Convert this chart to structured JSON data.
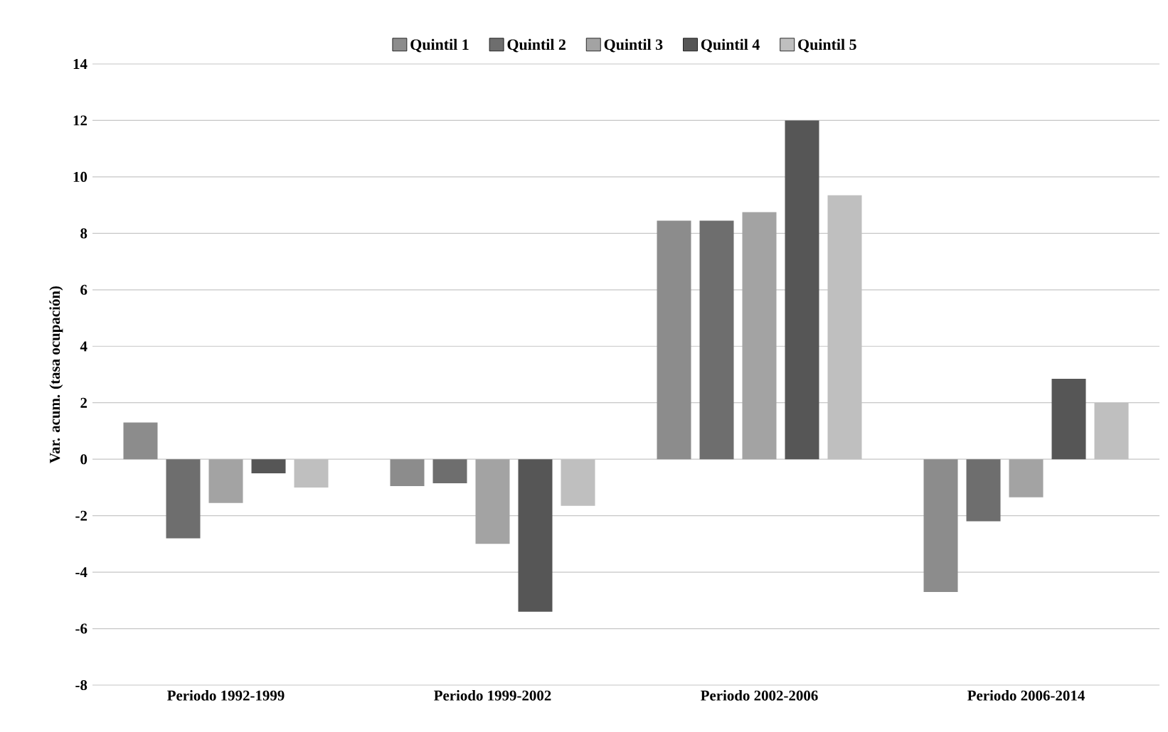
{
  "chart_data": {
    "type": "bar",
    "ylabel": "Var. acum. (tasa ocupación)",
    "categories": [
      "Periodo 1992-1999",
      "Periodo 1999-2002",
      "Periodo 2002-2006",
      "Periodo 2006-2014"
    ],
    "series": [
      {
        "name": "Quintil 1",
        "color": "#8c8c8c",
        "values": [
          1.3,
          -0.95,
          8.45,
          -4.7
        ]
      },
      {
        "name": "Quintil 2",
        "color": "#6e6e6e",
        "values": [
          -2.8,
          -0.85,
          8.45,
          -2.2
        ]
      },
      {
        "name": "Quintil 3",
        "color": "#a3a3a3",
        "values": [
          -1.55,
          -3.0,
          8.75,
          -1.35
        ]
      },
      {
        "name": "Quintil 4",
        "color": "#565656",
        "values": [
          -0.5,
          -5.4,
          12.0,
          2.85
        ]
      },
      {
        "name": "Quintil 5",
        "color": "#bfbfbf",
        "values": [
          -1.0,
          -1.65,
          9.35,
          2.0
        ]
      }
    ],
    "ylim": [
      -8,
      14
    ],
    "yticks": [
      -8,
      -6,
      -4,
      -2,
      0,
      2,
      4,
      6,
      8,
      10,
      12,
      14
    ],
    "grid": "y",
    "legend": "top"
  }
}
